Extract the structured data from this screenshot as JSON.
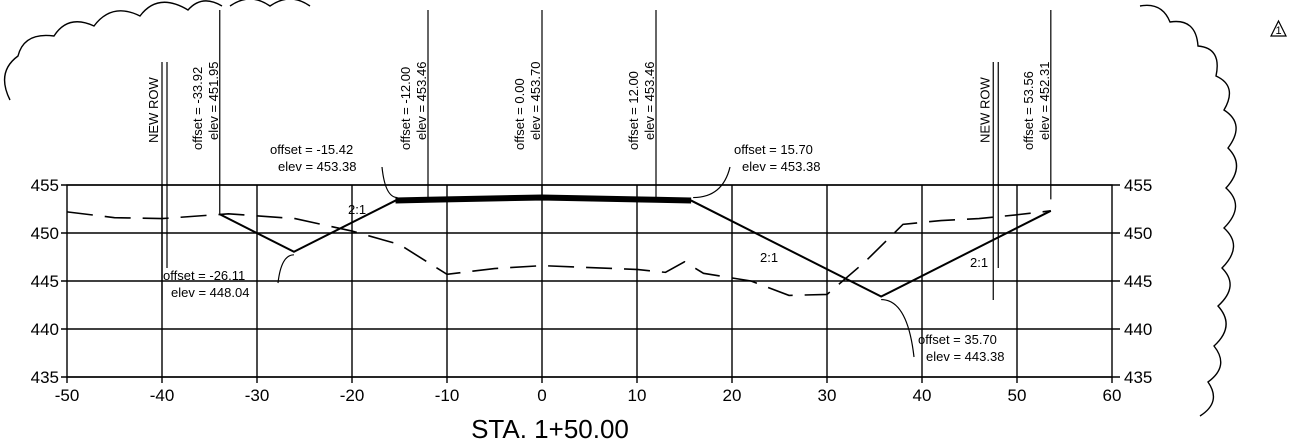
{
  "chart_data": {
    "type": "line",
    "title": "STA. 1+50.00",
    "xlabel": "",
    "ylabel": "",
    "xlim": [
      -50,
      60
    ],
    "ylim": [
      435,
      455
    ],
    "x_ticks": [
      -50,
      -40,
      -30,
      -20,
      -10,
      0,
      10,
      20,
      30,
      40,
      50,
      60
    ],
    "y_ticks": [
      435,
      440,
      445,
      450,
      455
    ],
    "grid": true,
    "series": [
      {
        "style": "solid",
        "x": [
          -33.92,
          -26.11,
          -15.42,
          -12.0,
          0.0,
          12.0,
          15.7,
          35.7,
          53.56
        ],
        "y": [
          451.95,
          448.04,
          453.38,
          453.46,
          453.7,
          453.46,
          453.38,
          443.38,
          452.31
        ]
      },
      {
        "style": "dashed",
        "x": [
          -50,
          -45,
          -40,
          -33,
          -26,
          -20,
          -15,
          -10,
          -5,
          0,
          5,
          10,
          13,
          15,
          17,
          22,
          26,
          30,
          34,
          38,
          42,
          46,
          50,
          53.56
        ],
        "y": [
          452.2,
          451.6,
          451.5,
          452.0,
          451.5,
          450.2,
          448.8,
          445.7,
          446.3,
          446.6,
          446.4,
          446.2,
          445.9,
          447.0,
          445.8,
          445.0,
          443.5,
          443.6,
          447.0,
          450.9,
          451.3,
          451.5,
          451.9,
          452.31
        ]
      }
    ],
    "road_top": {
      "x": [
        -15.42,
        -12.0,
        0.0,
        12.0,
        15.7
      ],
      "y": [
        453.38,
        453.46,
        453.7,
        453.46,
        453.38
      ]
    },
    "vertical_lines": [
      {
        "x": -33.92,
        "label_lines": [
          "offset = -33.92",
          "elev = 451.95"
        ]
      },
      {
        "x": -12.0,
        "label_lines": [
          "offset = -12.00",
          "elev = 453.46"
        ]
      },
      {
        "x": 0.0,
        "label_lines": [
          "offset = 0.00",
          "elev = 453.70"
        ]
      },
      {
        "x": 12.0,
        "label_lines": [
          "offset = 12.00",
          "elev = 453.46"
        ]
      },
      {
        "x": 53.56,
        "label_lines": [
          "offset = 53.56",
          "elev = 452.31"
        ]
      }
    ],
    "row_lines": [
      {
        "x": -40,
        "label": "NEW ROW"
      },
      {
        "x": 47.5,
        "label": "NEW ROW"
      }
    ],
    "callouts": [
      {
        "point": [
          -15.42,
          453.38
        ],
        "lines": [
          "offset = -15.42",
          "elev = 453.38"
        ]
      },
      {
        "point": [
          15.7,
          453.38
        ],
        "lines": [
          "offset = 15.70",
          "elev = 453.38"
        ]
      },
      {
        "point": [
          -26.11,
          448.04
        ],
        "lines": [
          "offset = -26.11",
          "elev = 448.04"
        ]
      },
      {
        "point": [
          35.7,
          443.38
        ],
        "lines": [
          "offset = 35.70",
          "elev = 443.38"
        ]
      }
    ],
    "slope_labels": [
      "2:1",
      "2:1",
      "2:1"
    ],
    "revision_mark": "1"
  }
}
